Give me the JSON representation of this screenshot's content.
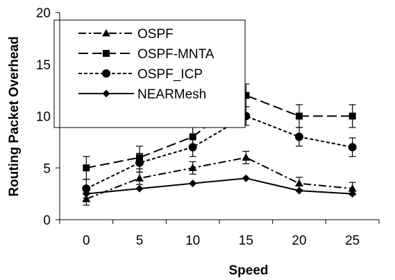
{
  "chart_data": {
    "type": "line",
    "xlabel": "Speed",
    "ylabel": "Routing Packet Overhead",
    "x": [
      0,
      5,
      10,
      15,
      20,
      25
    ],
    "x_ticks": [
      "0",
      "5",
      "10",
      "15",
      "20",
      "25"
    ],
    "y_ticks": [
      "0",
      "5",
      "10",
      "15",
      "20"
    ],
    "ylim": [
      0,
      20
    ],
    "legend_position": "top-left",
    "error_bars": true,
    "series": [
      {
        "name": "OSPF",
        "marker": "triangle",
        "dash": "dash-dot",
        "values": [
          2.0,
          4.0,
          5.0,
          6.0,
          3.5,
          3.0
        ],
        "errors": [
          0.6,
          0.6,
          0.6,
          0.6,
          0.6,
          0.6
        ]
      },
      {
        "name": "OSPF-MNTA",
        "marker": "square",
        "dash": "long-dash",
        "values": [
          5.0,
          6.0,
          8.0,
          12.0,
          10.0,
          10.0
        ],
        "errors": [
          1.1,
          1.1,
          1.1,
          1.1,
          1.1,
          1.1
        ]
      },
      {
        "name": "OSPF_ICP",
        "marker": "circle",
        "dash": "short-dash",
        "values": [
          3.0,
          5.5,
          7.0,
          10.0,
          8.0,
          7.0
        ],
        "errors": [
          0.9,
          0.9,
          0.9,
          0.9,
          0.9,
          0.9
        ]
      },
      {
        "name": "NEARMesh",
        "marker": "diamond",
        "dash": "solid",
        "values": [
          2.5,
          3.0,
          3.5,
          4.0,
          2.8,
          2.5
        ],
        "errors": [
          0.0,
          0.0,
          0.0,
          0.0,
          0.0,
          0.0
        ]
      }
    ]
  }
}
